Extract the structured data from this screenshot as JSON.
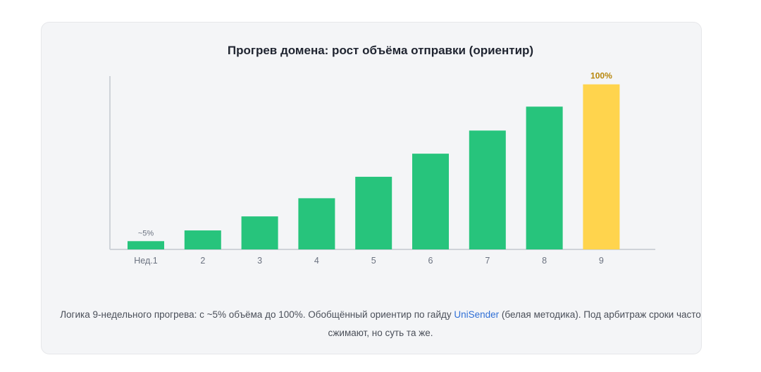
{
  "chart_data": {
    "type": "bar",
    "title": "Прогрев домена: рост объёма отправки (ориентир)",
    "categories": [
      "Нед.1",
      "2",
      "3",
      "4",
      "5",
      "6",
      "7",
      "8",
      "9"
    ],
    "values": [
      5,
      11.5,
      20,
      31,
      44,
      58,
      72,
      86.5,
      100
    ],
    "ylim": [
      0,
      105
    ],
    "data_labels": [
      "~5%",
      "",
      "",
      "",
      "",
      "",
      "",
      "",
      "100%"
    ],
    "grid": false,
    "colors": {
      "bar": "#27c47c",
      "highlight": "#ffd44d",
      "highlight_label": "#b7860b",
      "label": "#6b7280",
      "axis": "#cfd3d9"
    }
  },
  "footnote": {
    "before_link": "Логика 9-недельного прогрева: с ~5% объёма до 100%. Обобщённый ориентир по гайду ",
    "link_text": "UniSender",
    "after_link": " (белая методика). Под арбитраж сроки часто сжимают, но суть та же."
  }
}
